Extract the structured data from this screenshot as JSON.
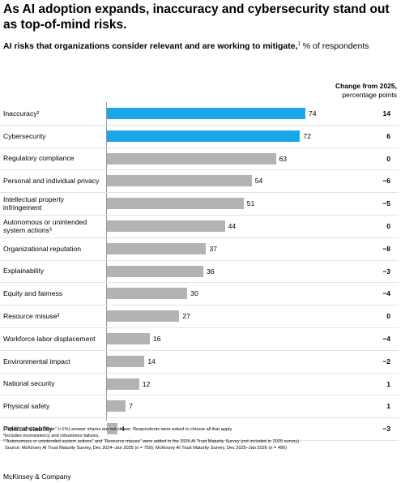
{
  "chart_data": {
    "type": "bar",
    "orientation": "horizontal",
    "title": "As AI adoption expands, inaccuracy and cybersecurity stand out as top-of-mind risks.",
    "subtitle": "AI risks that organizations consider relevant and are working to mitigate,",
    "subtitle_note": "1",
    "unit": "% of respondents",
    "categories": [
      "Inaccuracy²",
      "Cybersecurity",
      "Regulatory compliance",
      "Personal and individual privacy",
      "Intellectual property infringement",
      "Autonomous or unintended system actions³",
      "Organizational reputation",
      "Explainability",
      "Equity and fairness",
      "Resource misuse³",
      "Workforce labor displacement",
      "Environmental impact",
      "National security",
      "Physical safety",
      "Political stability"
    ],
    "values": [
      74,
      72,
      63,
      54,
      51,
      44,
      37,
      36,
      30,
      27,
      16,
      14,
      12,
      7,
      4
    ],
    "colors": [
      "#1ba6ea",
      "#1ba6ea",
      "#b3b3b3",
      "#b3b3b3",
      "#b3b3b3",
      "#b3b3b3",
      "#b3b3b3",
      "#b3b3b3",
      "#b3b3b3",
      "#b3b3b3",
      "#b3b3b3",
      "#b3b3b3",
      "#b3b3b3",
      "#b3b3b3",
      "#b3b3b3"
    ],
    "xlim": [
      0,
      100
    ],
    "change": {
      "title": "Change from 2025,",
      "subtitle": "percentage points",
      "values": [
        14,
        6,
        0,
        -6,
        -5,
        0,
        -8,
        -3,
        -4,
        0,
        -4,
        -2,
        1,
        1,
        -3
      ],
      "value_labels": [
        "14",
        "6",
        "0",
        "−6",
        "−5",
        "0",
        "−8",
        "−3",
        "−4",
        "0",
        "−4",
        "−2",
        "1",
        "1",
        "−3"
      ]
    },
    "footnotes": [
      "¹“Other” (<1%) and “None” (<1%) answer shares are not shown. Respondents were asked to choose all that apply.",
      "²Includes inconsistency and robustness failures.",
      "³“Autonomous or unintended system actions” and “Resource misuse” were added in the 2026 AI Trust Maturity Survey (not included in 2025 survey).",
      "Source: McKinsey AI Trust Maturity Survey, Dec 2024–Jan 2025 (n = 759); McKinsey AI Trust Maturity Survey, Dec 2025–Jan 2026 (n = 496)"
    ],
    "footer": "McKinsey & Company"
  }
}
